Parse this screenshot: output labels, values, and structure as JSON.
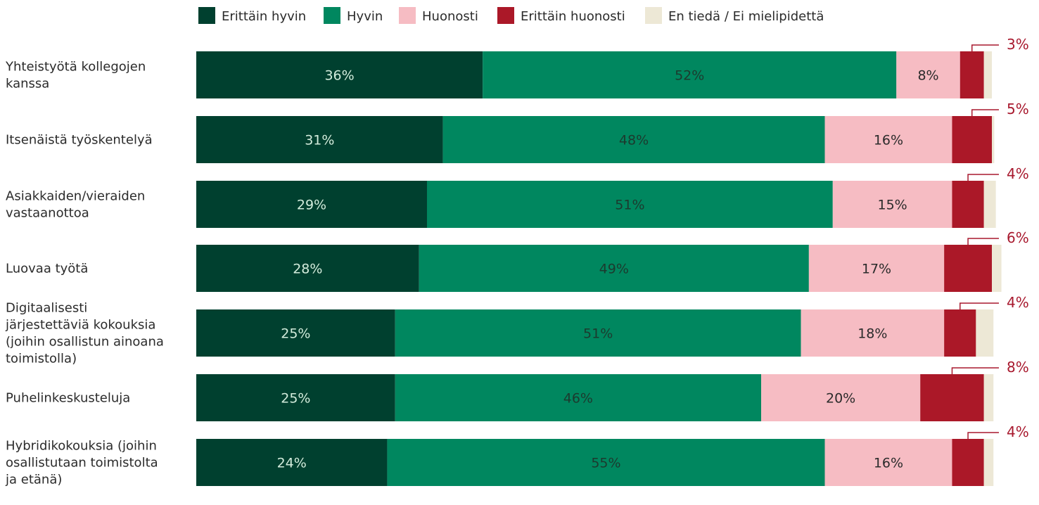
{
  "chart_data": {
    "type": "bar",
    "orientation": "horizontal",
    "stacked": true,
    "grid": false,
    "legend_position": "top",
    "xlim": [
      0,
      100
    ],
    "categories": [
      [
        "Yhteistyötä kollegojen",
        "kanssa"
      ],
      [
        "Itsenäistä työskentelyä"
      ],
      [
        "Asiakkaiden/vieraiden",
        "vastaanottoa"
      ],
      [
        "Luovaa työtä"
      ],
      [
        "Digitaalisesti",
        "järjestettäviä kokouksia",
        "(joihin osallistun ainoana",
        "toimistolla)"
      ],
      [
        "Puhelinkeskusteluja"
      ],
      [
        "Hybridikokouksia (joihin",
        "osallistutaan toimistolta",
        "ja etänä)"
      ]
    ],
    "series": [
      {
        "name": "Erittäin hyvin",
        "color": "#00402f",
        "label_color": "#d3ecdc",
        "values": [
          36,
          31,
          29,
          28,
          25,
          25,
          24
        ]
      },
      {
        "name": "Hyvin",
        "color": "#00875f",
        "label_color": "#1c3a2e",
        "values": [
          52,
          48,
          51,
          49,
          51,
          46,
          55
        ]
      },
      {
        "name": "Huonosti",
        "color": "#f6bcc3",
        "label_color": "#2b2b2b",
        "values": [
          8,
          16,
          15,
          17,
          18,
          20,
          16
        ]
      },
      {
        "name": "Erittäin huonosti",
        "color": "#ab1828",
        "label_color": "#a8192e",
        "values": [
          3,
          5,
          4,
          6,
          4,
          8,
          4
        ]
      },
      {
        "name": "En tiedä / Ei mielipidettä",
        "color": "#ede8d6",
        "label_color": "#2b2b2b",
        "values": [
          1,
          0.3,
          1.5,
          1.2,
          2.2,
          1.2,
          1.2
        ]
      }
    ],
    "labels_inside": [
      [
        "36%",
        "52%",
        "8%"
      ],
      [
        "31%",
        "48%",
        "16%"
      ],
      [
        "29%",
        "51%",
        "15%"
      ],
      [
        "28%",
        "49%",
        "17%"
      ],
      [
        "25%",
        "51%",
        "18%"
      ],
      [
        "25%",
        "46%",
        "20%"
      ],
      [
        "24%",
        "55%",
        "16%"
      ]
    ],
    "callout_labels": [
      "3%",
      "5%",
      "4%",
      "6%",
      "4%",
      "8%",
      "4%"
    ]
  }
}
